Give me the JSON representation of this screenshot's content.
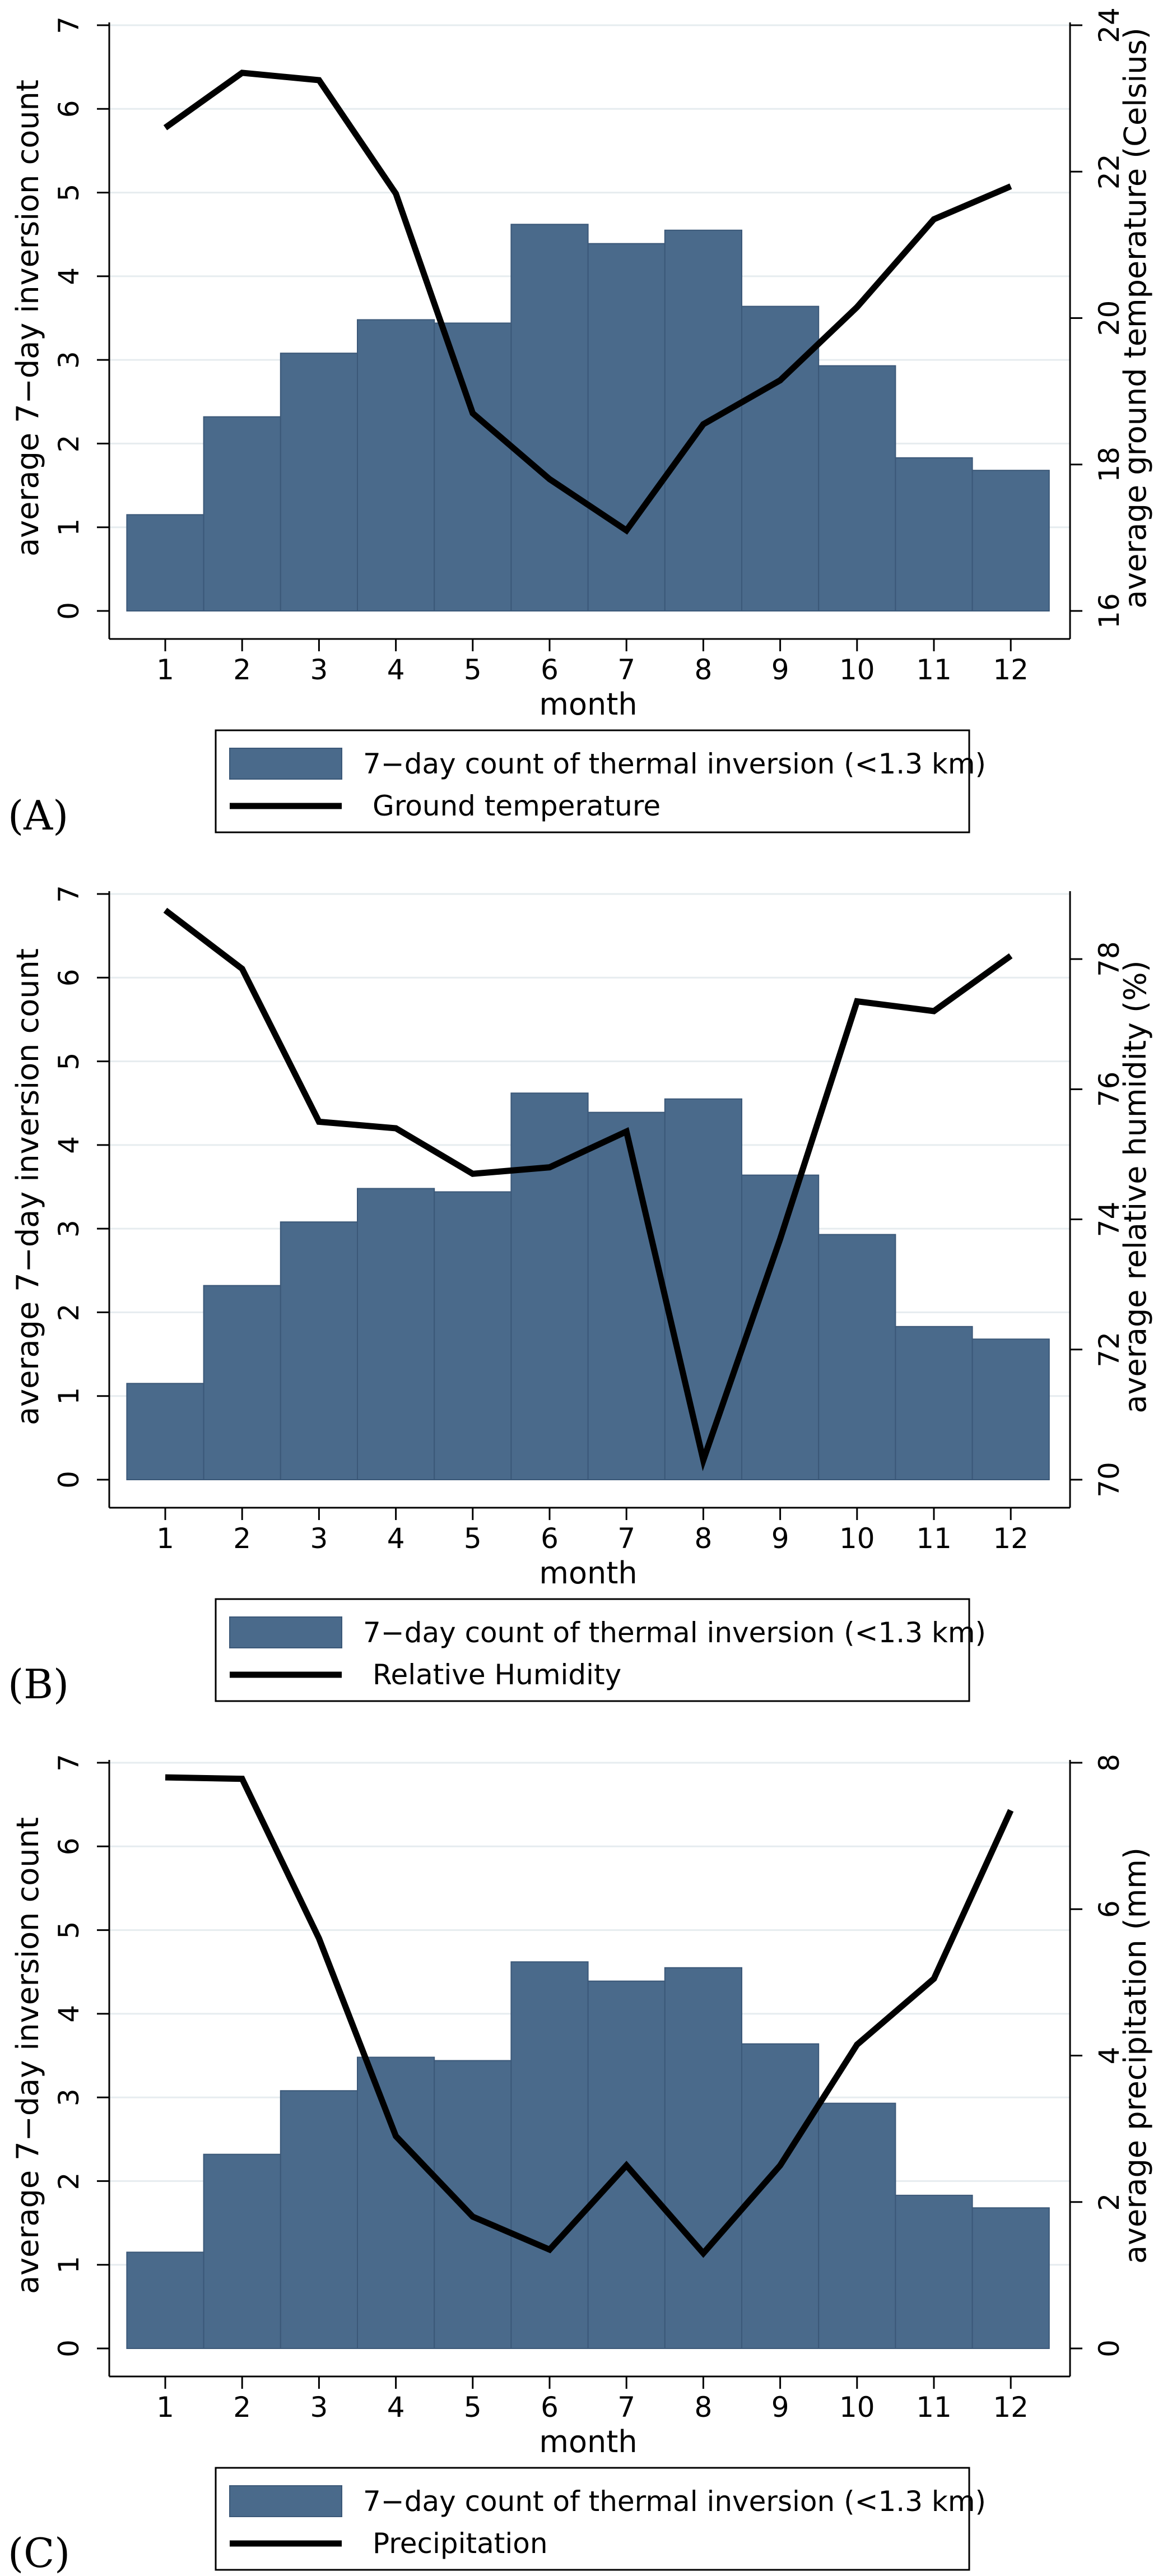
{
  "figure": {
    "colors": {
      "bar_fill": "#4a6a8b",
      "bar_edge": "#3b5878",
      "line": "#000000",
      "grid": "#e6ecef",
      "axis": "#000000"
    },
    "categories": [
      "1",
      "2",
      "3",
      "4",
      "5",
      "6",
      "7",
      "8",
      "9",
      "10",
      "11",
      "12"
    ],
    "xlabel": "month",
    "ylabel_left": "average 7−day inversion count",
    "left_ticks": [
      "0",
      "1",
      "2",
      "3",
      "4",
      "5",
      "6",
      "7"
    ]
  },
  "chart_data": [
    {
      "type": "bar",
      "panel_label": "(A)",
      "xlabel": "month",
      "ylabel": "average 7−day inversion count",
      "y2label": "average ground temperature (Celsius)",
      "ylim": [
        0,
        7
      ],
      "y2lim": [
        16,
        24
      ],
      "y2_ticks": [
        "16",
        "18",
        "20",
        "22",
        "24"
      ],
      "legend_placement": "bottom-center",
      "categories": [
        "1",
        "2",
        "3",
        "4",
        "5",
        "6",
        "7",
        "8",
        "9",
        "10",
        "11",
        "12"
      ],
      "series": [
        {
          "name": "7−day count of thermal inversion (<1.3 km)",
          "kind": "bar",
          "axis": "left",
          "values": [
            1.15,
            2.32,
            3.08,
            3.48,
            3.44,
            4.62,
            4.39,
            4.55,
            3.64,
            2.93,
            1.83,
            1.68
          ]
        },
        {
          "name": "Ground temperature",
          "kind": "line",
          "axis": "right",
          "values": [
            22.6,
            23.35,
            23.25,
            21.7,
            18.7,
            17.8,
            17.1,
            18.55,
            19.15,
            20.15,
            21.35,
            21.8
          ]
        }
      ]
    },
    {
      "type": "bar",
      "panel_label": "(B)",
      "xlabel": "month",
      "ylabel": "average 7−day inversion count",
      "y2label": "average relative humidity (%)",
      "ylim": [
        0,
        7
      ],
      "y2lim": [
        70,
        79
      ],
      "y2_ticks": [
        "70",
        "72",
        "74",
        "76",
        "78"
      ],
      "legend_placement": "bottom-center",
      "categories": [
        "1",
        "2",
        "3",
        "4",
        "5",
        "6",
        "7",
        "8",
        "9",
        "10",
        "11",
        "12"
      ],
      "series": [
        {
          "name": "7−day count of thermal inversion (<1.3 km)",
          "kind": "bar",
          "axis": "left",
          "values": [
            1.15,
            2.32,
            3.08,
            3.48,
            3.44,
            4.62,
            4.39,
            4.55,
            3.64,
            2.93,
            1.83,
            1.68
          ]
        },
        {
          "name": "Relative Humidity",
          "kind": "line",
          "axis": "right",
          "values": [
            78.75,
            77.85,
            75.5,
            75.4,
            74.7,
            74.8,
            75.35,
            70.3,
            73.7,
            77.35,
            77.2,
            78.05
          ]
        }
      ]
    },
    {
      "type": "bar",
      "panel_label": "(C)",
      "xlabel": "month",
      "ylabel": "average 7−day inversion count",
      "y2label": "average precipitation (mm)",
      "ylim": [
        0,
        7
      ],
      "y2lim": [
        0,
        8
      ],
      "y2_ticks": [
        "0",
        "2",
        "4",
        "6",
        "8"
      ],
      "legend_placement": "bottom-center",
      "categories": [
        "1",
        "2",
        "3",
        "4",
        "5",
        "6",
        "7",
        "8",
        "9",
        "10",
        "11",
        "12"
      ],
      "series": [
        {
          "name": "7−day count of thermal inversion (<1.3 km)",
          "kind": "bar",
          "axis": "left",
          "values": [
            1.15,
            2.32,
            3.08,
            3.48,
            3.44,
            4.62,
            4.39,
            4.55,
            3.64,
            2.93,
            1.83,
            1.68
          ]
        },
        {
          "name": "Precipitation",
          "kind": "line",
          "axis": "right",
          "values": [
            7.8,
            7.78,
            5.6,
            2.9,
            1.8,
            1.35,
            2.5,
            1.3,
            2.5,
            4.15,
            5.05,
            7.35
          ]
        }
      ]
    }
  ]
}
